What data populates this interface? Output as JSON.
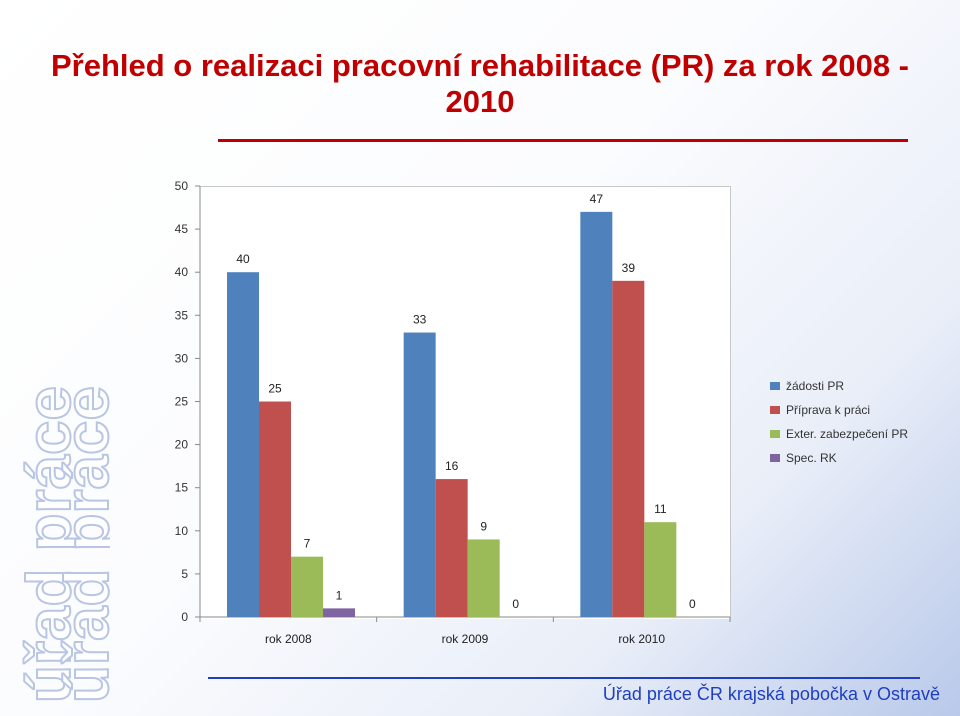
{
  "slide": {
    "title": "Přehled o realizaci pracovní rehabilitace (PR) za rok 2008 - 2010",
    "footer": "Úřad práce ČR krajská pobočka v Ostravě",
    "watermark_text": "úřad práce"
  },
  "chart_data": {
    "type": "bar",
    "title": "",
    "xlabel": "",
    "ylabel": "",
    "categories": [
      "rok 2008",
      "rok 2009",
      "rok 2010"
    ],
    "ylim": [
      0,
      50
    ],
    "yticks": [
      0,
      5,
      10,
      15,
      20,
      25,
      30,
      35,
      40,
      45,
      50
    ],
    "grid": false,
    "legend_position": "right",
    "series": [
      {
        "name": "žádosti PR",
        "color": "#4f81bd",
        "values": [
          40,
          33,
          47
        ]
      },
      {
        "name": "Příprava k práci",
        "color": "#c0504d",
        "values": [
          25,
          16,
          39
        ]
      },
      {
        "name": "Exter. zabezpečení PR",
        "color": "#9bbb59",
        "values": [
          7,
          9,
          11
        ]
      },
      {
        "name": "Spec. RK",
        "color": "#8064a2",
        "values": [
          1,
          0,
          0
        ]
      }
    ]
  }
}
